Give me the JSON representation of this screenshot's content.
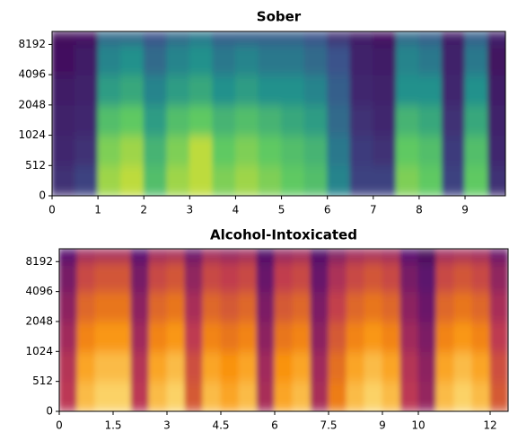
{
  "chart_data": [
    {
      "type": "spectrogram",
      "title": "Sober",
      "colormap": "viridis",
      "xlim": [
        0,
        9.88
      ],
      "xticks": [
        0,
        1,
        2,
        3,
        4,
        5,
        6,
        7,
        8,
        9
      ],
      "ylim": [
        0,
        11025
      ],
      "yscale": "symlog",
      "linthresh": 512,
      "yticks": [
        0,
        512,
        1024,
        2048,
        4096,
        8192
      ],
      "x_bins": [
        0,
        0.5,
        1,
        1.5,
        2,
        2.5,
        3,
        3.5,
        4,
        4.5,
        5,
        5.5,
        6,
        6.5,
        7,
        7.5,
        8,
        8.5,
        9,
        9.5,
        10
      ],
      "y_bins": [
        0,
        512,
        1024,
        2048,
        4096,
        8192,
        11025
      ],
      "values": [
        [
          0.15,
          0.2,
          0.85,
          0.9,
          0.7,
          0.85,
          0.9,
          0.8,
          0.85,
          0.8,
          0.75,
          0.7,
          0.45,
          0.2,
          0.2,
          0.8,
          0.75,
          0.2,
          0.75,
          0.15
        ],
        [
          0.12,
          0.15,
          0.8,
          0.85,
          0.65,
          0.8,
          0.9,
          0.75,
          0.8,
          0.75,
          0.7,
          0.65,
          0.4,
          0.18,
          0.15,
          0.75,
          0.7,
          0.18,
          0.7,
          0.12
        ],
        [
          0.1,
          0.12,
          0.7,
          0.75,
          0.55,
          0.7,
          0.75,
          0.65,
          0.7,
          0.65,
          0.6,
          0.55,
          0.35,
          0.15,
          0.12,
          0.65,
          0.6,
          0.15,
          0.6,
          0.1
        ],
        [
          0.08,
          0.1,
          0.55,
          0.6,
          0.45,
          0.55,
          0.6,
          0.5,
          0.55,
          0.5,
          0.5,
          0.45,
          0.3,
          0.12,
          0.1,
          0.5,
          0.5,
          0.12,
          0.5,
          0.08
        ],
        [
          0.05,
          0.08,
          0.45,
          0.5,
          0.35,
          0.45,
          0.5,
          0.4,
          0.45,
          0.4,
          0.4,
          0.35,
          0.25,
          0.1,
          0.08,
          0.45,
          0.4,
          0.1,
          0.4,
          0.06
        ],
        [
          0.03,
          0.05,
          0.35,
          0.35,
          0.25,
          0.35,
          0.4,
          0.3,
          0.3,
          0.3,
          0.3,
          0.25,
          0.15,
          0.08,
          0.05,
          0.35,
          0.3,
          0.08,
          0.3,
          0.1
        ]
      ]
    },
    {
      "type": "spectrogram",
      "title": "Alcohol-Intoxicated",
      "colormap": "inferno",
      "xlim": [
        0,
        12.5
      ],
      "xticks": [
        0,
        1.5,
        3,
        4.5,
        6,
        7.5,
        9,
        10,
        12
      ],
      "ylim": [
        0,
        11025
      ],
      "yscale": "symlog",
      "linthresh": 512,
      "yticks": [
        0,
        512,
        1024,
        2048,
        4096,
        8192
      ],
      "x_bins": [
        0,
        0.5,
        1,
        1.5,
        2,
        2.5,
        3,
        3.5,
        4,
        4.5,
        5,
        5.5,
        6,
        6.5,
        7,
        7.5,
        8,
        8.5,
        9,
        9.5,
        10,
        10.5,
        11,
        11.5,
        12,
        12.5
      ],
      "y_bins": [
        0,
        512,
        1024,
        2048,
        4096,
        8192,
        11025
      ],
      "values": [
        [
          0.5,
          0.85,
          0.9,
          0.9,
          0.5,
          0.85,
          0.9,
          0.6,
          0.85,
          0.8,
          0.85,
          0.45,
          0.8,
          0.85,
          0.45,
          0.7,
          0.85,
          0.9,
          0.85,
          0.5,
          0.4,
          0.85,
          0.9,
          0.85,
          0.6
        ],
        [
          0.48,
          0.8,
          0.85,
          0.85,
          0.48,
          0.8,
          0.85,
          0.57,
          0.8,
          0.76,
          0.8,
          0.43,
          0.76,
          0.8,
          0.43,
          0.66,
          0.8,
          0.85,
          0.8,
          0.48,
          0.38,
          0.8,
          0.85,
          0.8,
          0.57
        ],
        [
          0.43,
          0.72,
          0.77,
          0.77,
          0.43,
          0.72,
          0.77,
          0.51,
          0.72,
          0.68,
          0.72,
          0.38,
          0.68,
          0.72,
          0.38,
          0.6,
          0.72,
          0.77,
          0.72,
          0.43,
          0.34,
          0.72,
          0.77,
          0.72,
          0.51
        ],
        [
          0.38,
          0.64,
          0.68,
          0.68,
          0.38,
          0.64,
          0.68,
          0.45,
          0.64,
          0.6,
          0.64,
          0.34,
          0.6,
          0.64,
          0.34,
          0.53,
          0.64,
          0.68,
          0.64,
          0.38,
          0.3,
          0.64,
          0.68,
          0.64,
          0.45
        ],
        [
          0.33,
          0.55,
          0.59,
          0.59,
          0.33,
          0.55,
          0.59,
          0.39,
          0.55,
          0.52,
          0.55,
          0.29,
          0.52,
          0.55,
          0.29,
          0.46,
          0.55,
          0.59,
          0.55,
          0.33,
          0.26,
          0.55,
          0.59,
          0.55,
          0.39
        ],
        [
          0.25,
          0.43,
          0.45,
          0.45,
          0.25,
          0.43,
          0.45,
          0.3,
          0.43,
          0.4,
          0.43,
          0.23,
          0.4,
          0.43,
          0.23,
          0.35,
          0.43,
          0.45,
          0.43,
          0.25,
          0.2,
          0.43,
          0.45,
          0.43,
          0.3
        ]
      ]
    }
  ]
}
